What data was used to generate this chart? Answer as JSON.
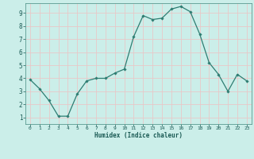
{
  "x": [
    0,
    1,
    2,
    3,
    4,
    5,
    6,
    7,
    8,
    9,
    10,
    11,
    12,
    13,
    14,
    15,
    16,
    17,
    18,
    19,
    20,
    21,
    22,
    23
  ],
  "y": [
    3.9,
    3.2,
    2.3,
    1.1,
    1.1,
    2.8,
    3.8,
    4.0,
    4.0,
    4.4,
    4.7,
    7.2,
    8.8,
    8.5,
    8.6,
    9.3,
    9.5,
    9.1,
    7.4,
    5.2,
    4.3,
    3.0,
    4.3,
    3.8
  ],
  "xlabel": "Humidex (Indice chaleur)",
  "bg_color": "#cbeee9",
  "grid_color": "#e8c8c8",
  "line_color": "#2e7d72",
  "marker_color": "#2e7d72",
  "xlim": [
    -0.5,
    23.5
  ],
  "ylim": [
    0.5,
    9.75
  ],
  "xticks": [
    0,
    1,
    2,
    3,
    4,
    5,
    6,
    7,
    8,
    9,
    10,
    11,
    12,
    13,
    14,
    15,
    16,
    17,
    18,
    19,
    20,
    21,
    22,
    23
  ],
  "yticks": [
    1,
    2,
    3,
    4,
    5,
    6,
    7,
    8,
    9
  ]
}
